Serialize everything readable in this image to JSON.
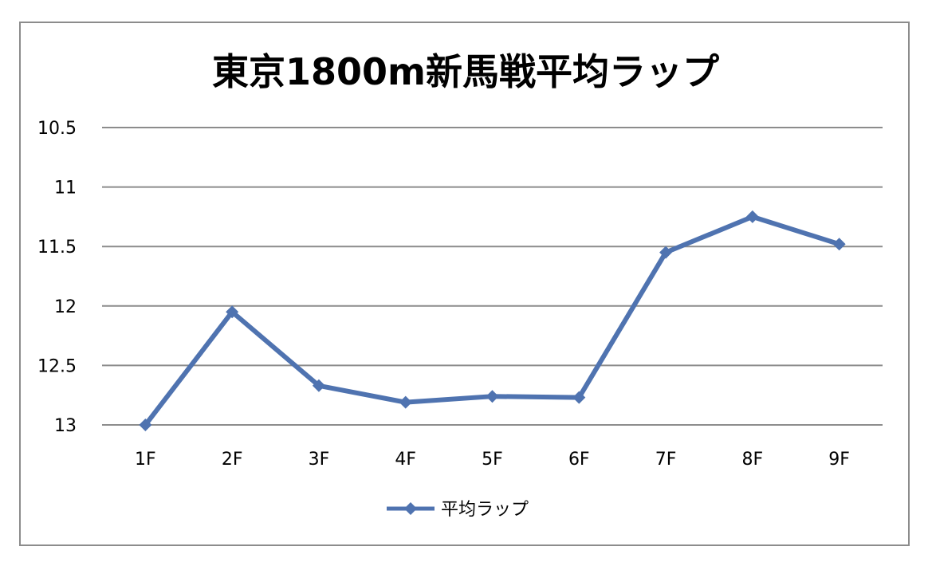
{
  "chart_data": {
    "type": "line",
    "title": "東京1800m新馬戦平均ラップ",
    "categories": [
      "1F",
      "2F",
      "3F",
      "4F",
      "5F",
      "6F",
      "7F",
      "8F",
      "9F"
    ],
    "series": [
      {
        "name": "平均ラップ",
        "values": [
          13.0,
          12.05,
          12.67,
          12.81,
          12.76,
          12.77,
          11.55,
          11.25,
          11.48
        ]
      }
    ],
    "ylim": [
      10.5,
      13
    ],
    "y_reversed": true,
    "yticks": [
      "10.5",
      "11",
      "11.5",
      "12",
      "12.5",
      "13"
    ],
    "grid": true,
    "legend_position": "bottom",
    "colors": {
      "series": "#4f73b0",
      "grid": "#8c8c8c",
      "border": "#8c8c8c"
    }
  }
}
